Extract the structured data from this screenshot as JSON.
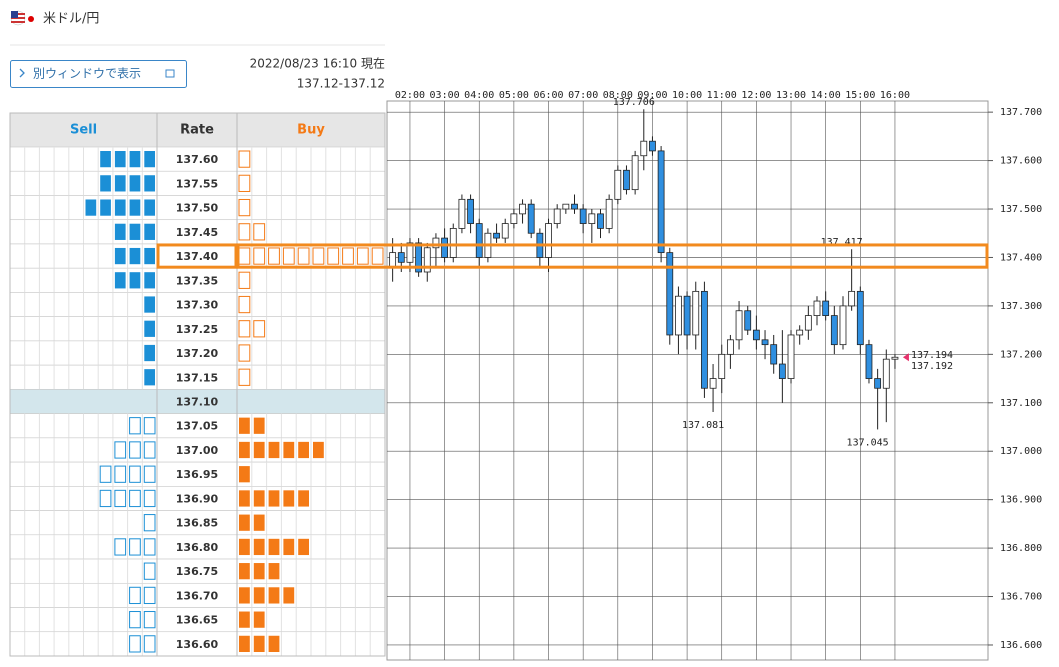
{
  "header": {
    "title": "米ドル/円",
    "button": "別ウィンドウで表示",
    "timestamp": "2022/08/23 16:10 現在",
    "price_range": "137.12-137.12"
  },
  "order_book": {
    "columns": [
      "Sell",
      "Rate",
      "Buy"
    ],
    "sell_color": "#1b8fd6",
    "buy_color": "#f47a16",
    "rows": [
      {
        "rate": "137.60",
        "sell": 4,
        "buy": 1
      },
      {
        "rate": "137.55",
        "sell": 4,
        "buy": 1
      },
      {
        "rate": "137.50",
        "sell": 5,
        "buy": 1
      },
      {
        "rate": "137.45",
        "sell": 3,
        "buy": 2
      },
      {
        "rate": "137.40",
        "sell": 3,
        "buy": 10,
        "selected": true
      },
      {
        "rate": "137.35",
        "sell": 3,
        "buy": 1
      },
      {
        "rate": "137.30",
        "sell": 1,
        "buy": 1
      },
      {
        "rate": "137.25",
        "sell": 1,
        "buy": 2
      },
      {
        "rate": "137.20",
        "sell": 1,
        "buy": 1
      },
      {
        "rate": "137.15",
        "sell": 1,
        "buy": 1
      },
      {
        "rate": "137.10",
        "sell": 0,
        "buy": 0,
        "current": true
      },
      {
        "rate": "137.05",
        "sell": 2,
        "buy": 2
      },
      {
        "rate": "137.00",
        "sell": 3,
        "buy": 6
      },
      {
        "rate": "136.95",
        "sell": 4,
        "buy": 1
      },
      {
        "rate": "136.90",
        "sell": 4,
        "buy": 5
      },
      {
        "rate": "136.85",
        "sell": 1,
        "buy": 2
      },
      {
        "rate": "136.80",
        "sell": 3,
        "buy": 5
      },
      {
        "rate": "136.75",
        "sell": 1,
        "buy": 3
      },
      {
        "rate": "136.70",
        "sell": 2,
        "buy": 4
      },
      {
        "rate": "136.65",
        "sell": 2,
        "buy": 2
      },
      {
        "rate": "136.60",
        "sell": 2,
        "buy": 3
      }
    ]
  },
  "chart_data": {
    "type": "candlestick",
    "categories": [
      null,
      null,
      "02:00",
      null,
      null,
      null,
      "03:00",
      null,
      null,
      null,
      "04:00",
      null,
      null,
      null,
      "05:00",
      null,
      null,
      null,
      "06:00",
      null,
      null,
      null,
      "07:00",
      null,
      null,
      null,
      "08:00",
      null,
      null,
      null,
      "09:00",
      null,
      null,
      null,
      "10:00",
      null,
      null,
      null,
      "11:00",
      null,
      null,
      null,
      "12:00",
      null,
      null,
      null,
      "13:00",
      null,
      null,
      null,
      "14:00",
      null,
      null,
      null,
      "15:00",
      null,
      null,
      null,
      "16:00"
    ],
    "open": [
      137.38,
      137.41,
      137.39,
      137.43,
      137.37,
      137.42,
      137.44,
      137.4,
      137.46,
      137.52,
      137.47,
      137.4,
      137.45,
      137.44,
      137.47,
      137.49,
      137.51,
      137.45,
      137.4,
      137.47,
      137.5,
      137.51,
      137.5,
      137.47,
      137.49,
      137.46,
      137.52,
      137.58,
      137.54,
      137.61,
      137.64,
      137.62,
      137.41,
      137.24,
      137.32,
      137.24,
      137.33,
      137.13,
      137.15,
      137.2,
      137.23,
      137.29,
      137.25,
      137.23,
      137.22,
      137.18,
      137.15,
      137.24,
      137.25,
      137.28,
      137.31,
      137.28,
      137.22,
      137.3,
      137.33,
      137.22,
      137.15,
      137.13,
      137.19
    ],
    "high": [
      137.44,
      137.43,
      137.44,
      137.44,
      137.43,
      137.45,
      137.46,
      137.47,
      137.53,
      137.53,
      137.48,
      137.46,
      137.47,
      137.48,
      137.5,
      137.52,
      137.52,
      137.46,
      137.48,
      137.51,
      137.51,
      137.53,
      137.51,
      137.5,
      137.5,
      137.53,
      137.59,
      137.59,
      137.62,
      137.706,
      137.65,
      137.63,
      137.42,
      137.34,
      137.33,
      137.35,
      137.35,
      137.18,
      137.22,
      137.24,
      137.31,
      137.3,
      137.28,
      137.25,
      137.24,
      137.25,
      137.25,
      137.26,
      137.3,
      137.32,
      137.33,
      137.3,
      137.32,
      137.417,
      137.34,
      137.23,
      137.17,
      137.21,
      137.2
    ],
    "low": [
      137.35,
      137.37,
      137.37,
      137.36,
      137.35,
      137.38,
      137.39,
      137.39,
      137.45,
      137.45,
      137.38,
      137.39,
      137.43,
      137.43,
      137.46,
      137.47,
      137.44,
      137.38,
      137.37,
      137.46,
      137.49,
      137.49,
      137.45,
      137.43,
      137.44,
      137.45,
      137.51,
      137.53,
      137.53,
      137.58,
      137.61,
      137.39,
      137.22,
      137.2,
      137.21,
      137.21,
      137.11,
      137.081,
      137.12,
      137.17,
      137.21,
      137.24,
      137.21,
      137.19,
      137.16,
      137.1,
      137.14,
      137.22,
      137.23,
      137.26,
      137.27,
      137.2,
      137.21,
      137.29,
      137.2,
      137.14,
      137.045,
      137.06,
      137.17
    ],
    "close": [
      137.41,
      137.39,
      137.43,
      137.37,
      137.42,
      137.44,
      137.4,
      137.46,
      137.52,
      137.47,
      137.4,
      137.45,
      137.44,
      137.47,
      137.49,
      137.51,
      137.45,
      137.4,
      137.47,
      137.5,
      137.51,
      137.5,
      137.47,
      137.49,
      137.46,
      137.52,
      137.58,
      137.54,
      137.61,
      137.64,
      137.62,
      137.41,
      137.24,
      137.32,
      137.24,
      137.33,
      137.13,
      137.15,
      137.2,
      137.23,
      137.29,
      137.25,
      137.23,
      137.22,
      137.18,
      137.15,
      137.24,
      137.25,
      137.28,
      137.31,
      137.28,
      137.22,
      137.3,
      137.33,
      137.22,
      137.15,
      137.13,
      137.19,
      137.194
    ],
    "up_color": "#ffffff",
    "down_color": "#2f8fe0",
    "ylim": [
      136.569,
      137.723
    ],
    "yticks": [
      {
        "value": 137.7,
        "label": "137.700"
      },
      {
        "value": 137.6,
        "label": "137.600"
      },
      {
        "value": 137.5,
        "label": "137.500"
      },
      {
        "value": 137.4,
        "label": "137.400"
      },
      {
        "value": 137.3,
        "label": "137.300"
      },
      {
        "value": 137.2,
        "label": "137.200"
      },
      {
        "value": 137.1,
        "label": "137.100"
      },
      {
        "value": 137.0,
        "label": "137.000"
      },
      {
        "value": 136.9,
        "label": "136.900"
      },
      {
        "value": 136.8,
        "label": "136.800"
      },
      {
        "value": 136.7,
        "label": "136.700"
      },
      {
        "value": 136.6,
        "label": "136.600"
      }
    ],
    "grid": true,
    "highlight_level": 137.4,
    "annotations": [
      {
        "label": "137.706",
        "value": 137.706,
        "side": "high",
        "color": "#f08a3c"
      },
      {
        "label": "137.417",
        "value": 137.417,
        "side": "high",
        "color": "#f08a3c"
      },
      {
        "label": "137.081",
        "value": 137.081,
        "side": "low",
        "color": "#2db82d"
      },
      {
        "label": "137.045",
        "value": 137.045,
        "side": "low",
        "color": "#2db82d"
      }
    ],
    "last_prices": [
      {
        "label": "137.194",
        "value": 137.194,
        "color": "#e8336d"
      },
      {
        "label": "137.192",
        "value": 137.192,
        "color": "#29a8e0"
      }
    ]
  }
}
